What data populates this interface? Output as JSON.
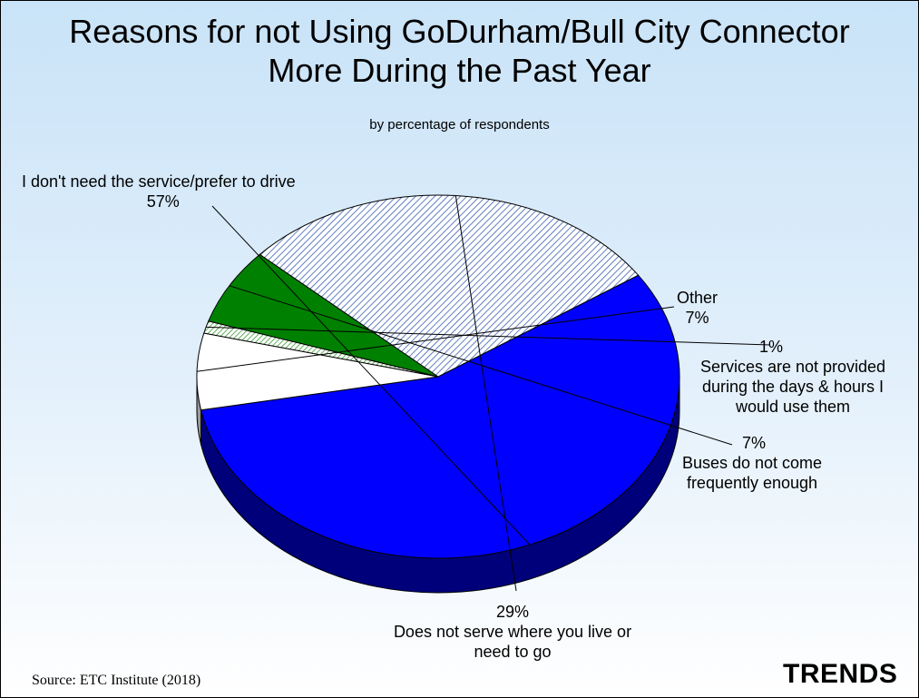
{
  "chart_data": {
    "type": "pie",
    "title": [
      "Reasons for not Using GoDurham/Bull City Connector",
      "More During the Past Year"
    ],
    "subtitle": "by percentage of respondents",
    "slices": [
      {
        "label": "I don't need the service/prefer to drive",
        "value_label": "57%",
        "value": 56.5,
        "color": "#0000ff",
        "side_color": "#00007a",
        "pattern": "solid"
      },
      {
        "label": "Other",
        "value_label": "7%",
        "value": 6.8,
        "color": "#ffffff",
        "side_color": "#9a9a9a",
        "pattern": "solid"
      },
      {
        "label": "Services are not provided during the days & hours I would use them",
        "value_label": "1%",
        "value": 1.1,
        "color": "#b8e6b0",
        "side_color": "#3a7a34",
        "pattern": "hatch-green"
      },
      {
        "label": "Buses do not come frequently enough",
        "value_label": "7%",
        "value": 6.8,
        "color": "#008000",
        "side_color": "#004000",
        "pattern": "solid"
      },
      {
        "label": "Does not serve where you live or need to go",
        "value_label": "29%",
        "value": 28.8,
        "color": "#c7d8f5",
        "side_color": "#0a2f78",
        "pattern": "hatch-blue"
      }
    ],
    "labels_display": {
      "drive": [
        "I don't need the service/prefer to drive",
        "57%"
      ],
      "other": [
        "Other",
        "7%"
      ],
      "services": [
        "1%",
        "Services are not provided",
        "during the days & hours I",
        "would use them"
      ],
      "buses": [
        "7%",
        "Buses do not come",
        "frequently enough"
      ],
      "serve": [
        "29%",
        "Does not serve where you live or",
        "need to go"
      ]
    }
  },
  "footer": {
    "source": "Source:  ETC Institute (2018)",
    "brand": "TRENDS"
  }
}
